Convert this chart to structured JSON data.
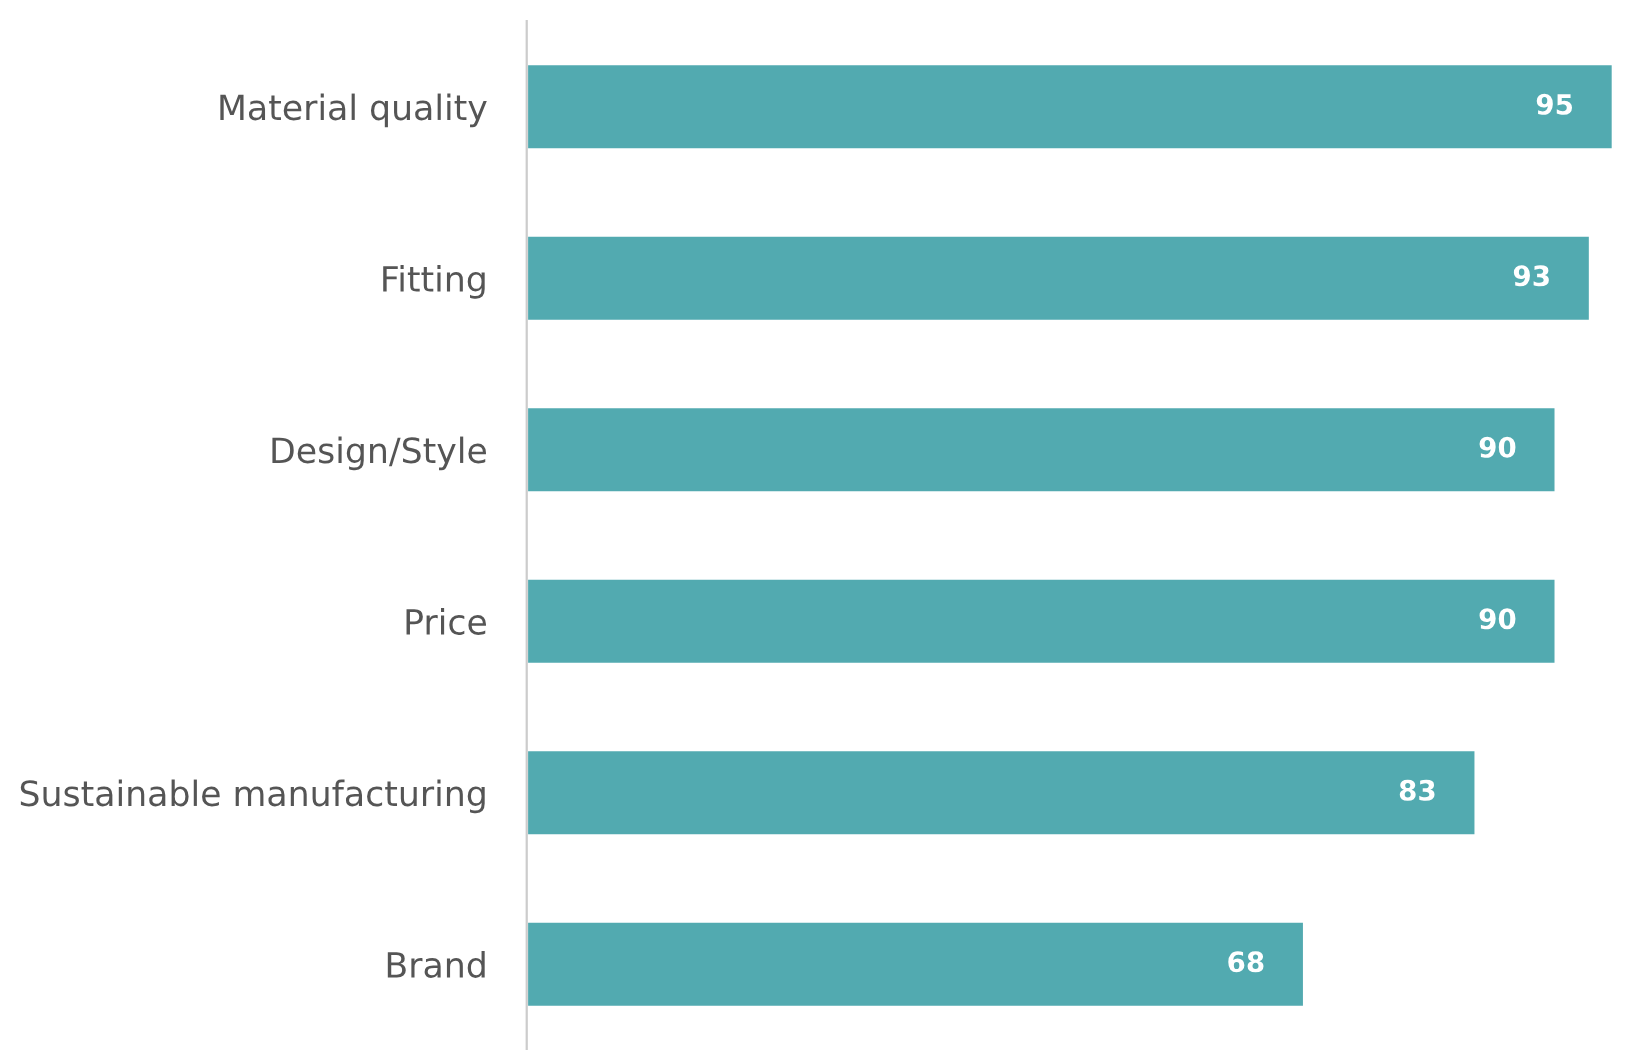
{
  "chart_data": {
    "type": "bar",
    "orientation": "horizontal",
    "categories": [
      "Material quality",
      "Fitting",
      "Design/Style",
      "Price",
      "Sustainable manufacturing",
      "Brand"
    ],
    "values": [
      95,
      93,
      90,
      90,
      83,
      68
    ],
    "color": "#52aab0",
    "tick_labels": "y",
    "data_labels": true,
    "grid": false,
    "legend": false
  }
}
